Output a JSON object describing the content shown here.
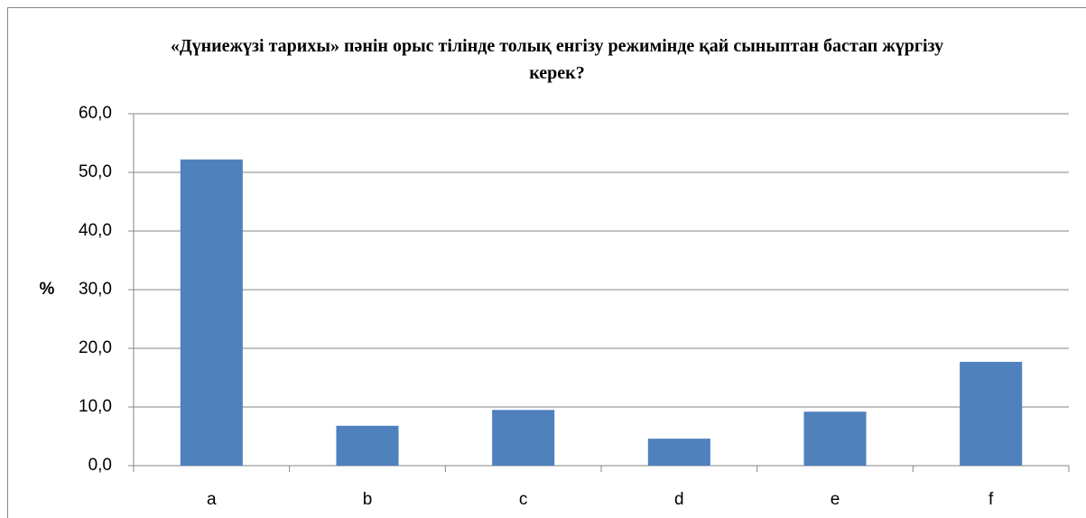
{
  "chart_data": {
    "type": "bar",
    "title": "«Дүниежүзі тарихы» пәнін орыс тілінде толық енгізу режимінде қай сыныптан бастап жүргізу керек?",
    "y_label": "%",
    "categories": [
      "a",
      "b",
      "c",
      "d",
      "e",
      "f"
    ],
    "values": [
      52.2,
      6.8,
      9.5,
      4.6,
      9.2,
      17.7
    ],
    "color": "#4f81bd",
    "ylim": [
      0,
      60
    ],
    "yticks": [
      {
        "value": 0,
        "label": "0,0"
      },
      {
        "value": 10,
        "label": "10,0"
      },
      {
        "value": 20,
        "label": "20,0"
      },
      {
        "value": 30,
        "label": "30,0"
      },
      {
        "value": 40,
        "label": "40,0"
      },
      {
        "value": 50,
        "label": "50,0"
      },
      {
        "value": 60,
        "label": "60,0"
      }
    ],
    "grid": true
  }
}
